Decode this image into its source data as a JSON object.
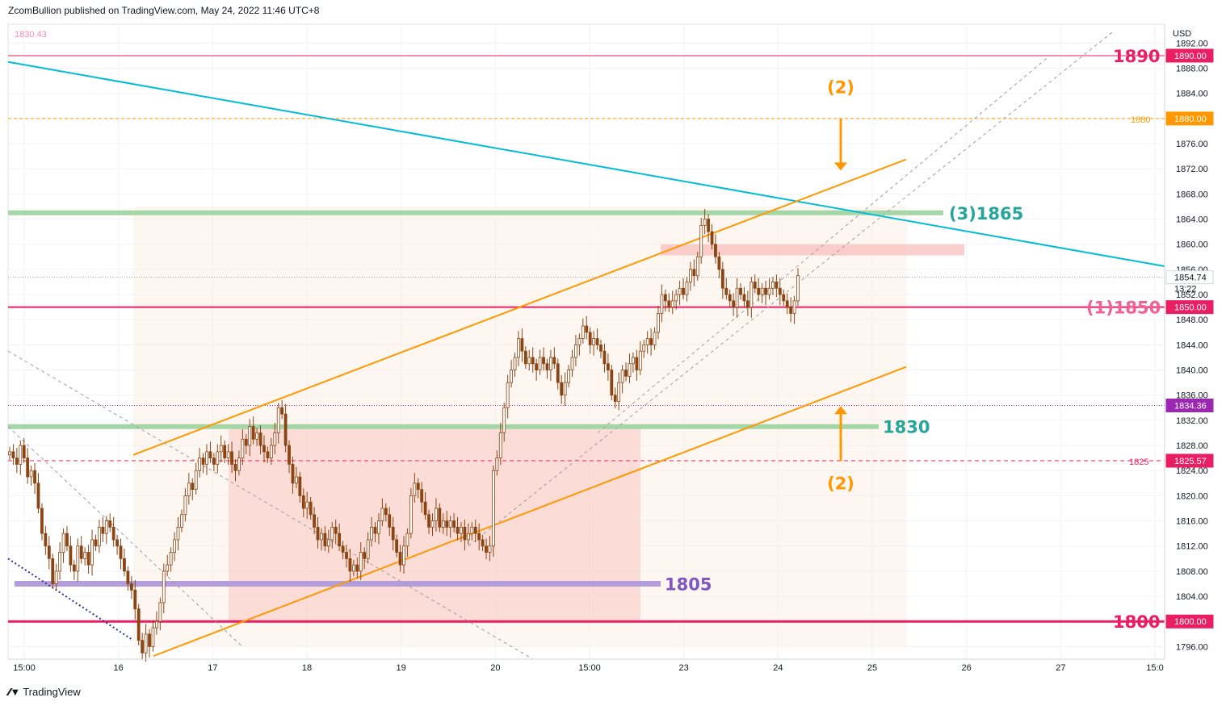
{
  "header": {
    "published_text": "ZcomBullion published on TradingView.com, May 24, 2022 11:46 UTC+8",
    "prev_value": "1830.43"
  },
  "footer": {
    "brand": "TradingView",
    "logo": "tv-logo-icon"
  },
  "colors": {
    "candle": "#8b4513",
    "grid": "#f2f3f5",
    "pink": "#e91e63",
    "orange": "#ff9800",
    "cyan": "#00bcd4",
    "green": "#a5d6a7",
    "teal_text": "#26a69a",
    "purple": "#b39ddb",
    "purple_text": "#7e57c2",
    "box_red": "#f8bbbb",
    "box_peach": "#fde9d6"
  },
  "chart_data": {
    "type": "candlestick",
    "currency": "USD",
    "ylim": [
      1794,
      1895
    ],
    "x_ticks": [
      "15:00",
      "16",
      "17",
      "18",
      "19",
      "20",
      "15:00",
      "23",
      "24",
      "25",
      "26",
      "27",
      "15:0"
    ],
    "y_ticks": [
      "1892.00",
      "1888.00",
      "1884.00",
      "1880.00",
      "1876.00",
      "1872.00",
      "1868.00",
      "1864.00",
      "1860.00",
      "1856.00",
      "1852.00",
      "1848.00",
      "1844.00",
      "1840.00",
      "1836.00",
      "1832.00",
      "1828.00",
      "1824.00",
      "1820.00",
      "1816.00",
      "1812.00",
      "1808.00",
      "1804.00",
      "1800.00",
      "1796.00"
    ],
    "price_badges": [
      {
        "value": 1890.0,
        "text": "1890.00",
        "color": "#e91e63"
      },
      {
        "value": 1880.0,
        "text": "1880.00",
        "color": "#ff9800"
      },
      {
        "value": 1854.74,
        "text": "1854.74",
        "color": "#ffffff"
      },
      {
        "value": 1850.0,
        "text": "1850.00",
        "color": "#e91e63"
      },
      {
        "value": 1834.36,
        "text": "1834.36",
        "color": "#9c27b0"
      },
      {
        "value": 1825.57,
        "text": "1825.57",
        "color": "#e91e63"
      },
      {
        "value": 1800.0,
        "text": "1800.00",
        "color": "#e91e63"
      }
    ],
    "countdown": "13:22",
    "levels": [
      {
        "value": 1890,
        "label": "1890",
        "color": "#e91e63"
      },
      {
        "value": 1880,
        "label": "1880",
        "color": "#ff9800"
      },
      {
        "value": 1865,
        "label": "(3)1865",
        "color": "#26a69a"
      },
      {
        "value": 1850,
        "label": "(1)1850",
        "color": "#f06292"
      },
      {
        "value": 1831,
        "label": "1830",
        "color": "#26a69a"
      },
      {
        "value": 1825.57,
        "label": "1825",
        "color": "#e91e63"
      },
      {
        "value": 1806,
        "label": "1805",
        "color": "#7e57c2"
      },
      {
        "value": 1800,
        "label": "1800",
        "color": "#e91e63"
      }
    ],
    "annotations": [
      {
        "text": "(2)",
        "position": "top"
      },
      {
        "text": "(2)",
        "position": "bottom"
      }
    ],
    "closes": [
      1827,
      1826,
      1825,
      1828,
      1826,
      1823,
      1824,
      1822,
      1818,
      1814,
      1812,
      1810,
      1806,
      1808,
      1811,
      1814,
      1812,
      1809,
      1808,
      1812,
      1810,
      1811,
      1809,
      1813,
      1812,
      1815,
      1814,
      1816,
      1815,
      1813,
      1812,
      1810,
      1808,
      1806,
      1805,
      1802,
      1797,
      1795,
      1798,
      1796,
      1799,
      1800,
      1803,
      1808,
      1809,
      1811,
      1813,
      1815,
      1817,
      1820,
      1822,
      1821,
      1824,
      1826,
      1825,
      1827,
      1826,
      1825,
      1827,
      1828,
      1826,
      1827,
      1825,
      1824,
      1826,
      1829,
      1828,
      1831,
      1829,
      1830,
      1828,
      1827,
      1826,
      1828,
      1830,
      1834,
      1833,
      1828,
      1825,
      1822,
      1823,
      1820,
      1818,
      1819,
      1817,
      1815,
      1813,
      1814,
      1812,
      1813,
      1815,
      1814,
      1812,
      1811,
      1810,
      1808,
      1809,
      1808,
      1811,
      1810,
      1813,
      1815,
      1814,
      1816,
      1818,
      1817,
      1815,
      1813,
      1811,
      1809,
      1812,
      1814,
      1820,
      1822,
      1821,
      1819,
      1817,
      1815,
      1816,
      1818,
      1815,
      1816,
      1815,
      1816,
      1815,
      1814,
      1815,
      1813,
      1814,
      1815,
      1814,
      1813,
      1812,
      1811,
      1812,
      1824,
      1826,
      1830,
      1834,
      1838,
      1840,
      1842,
      1845,
      1843,
      1841,
      1842,
      1841,
      1840,
      1842,
      1841,
      1840,
      1842,
      1841,
      1838,
      1836,
      1838,
      1840,
      1842,
      1844,
      1845,
      1847,
      1846,
      1844,
      1845,
      1844,
      1843,
      1841,
      1840,
      1836,
      1835,
      1838,
      1840,
      1839,
      1841,
      1842,
      1840,
      1843,
      1844,
      1845,
      1844,
      1846,
      1849,
      1852,
      1851,
      1850,
      1851,
      1852,
      1853,
      1852,
      1854,
      1856,
      1855,
      1858,
      1863,
      1864,
      1862,
      1860,
      1858,
      1856,
      1853,
      1852,
      1851,
      1850,
      1853,
      1852,
      1851,
      1850,
      1854,
      1853,
      1852,
      1853,
      1852,
      1853,
      1854,
      1853,
      1852,
      1851,
      1850,
      1849,
      1851,
      1855
    ]
  }
}
